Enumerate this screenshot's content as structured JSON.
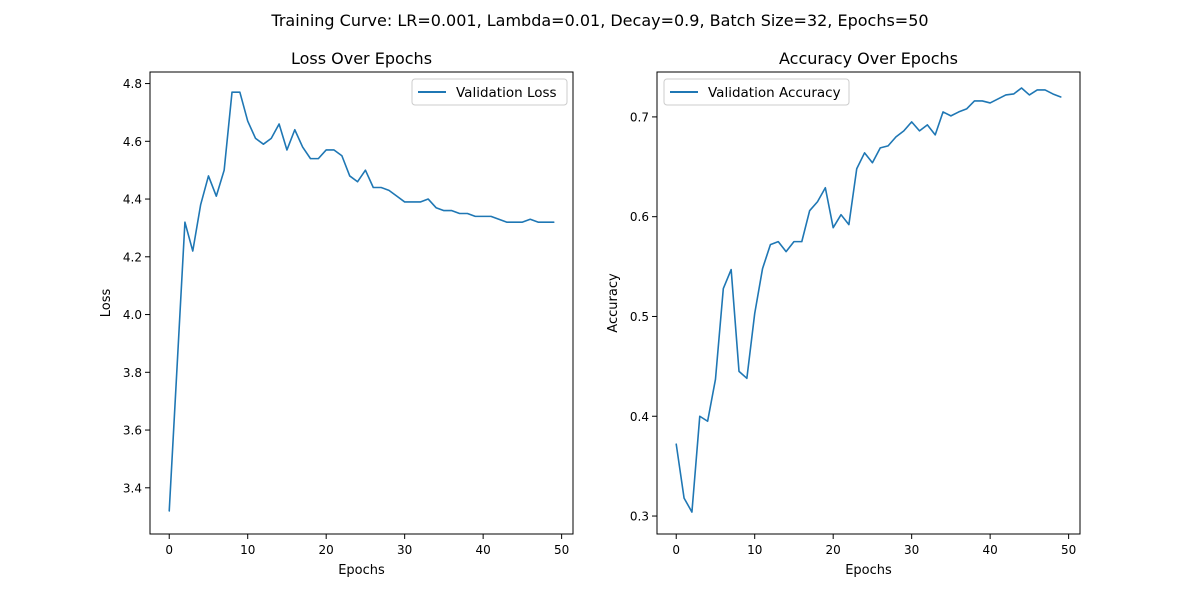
{
  "figure": {
    "suptitle": "Training Curve: LR=0.001, Lambda=0.01, Decay=0.9, Batch Size=32, Epochs=50"
  },
  "chart_data": [
    {
      "type": "line",
      "title": "Loss Over Epochs",
      "xlabel": "Epochs",
      "ylabel": "Loss",
      "xlim": [
        -2.45,
        51.45
      ],
      "ylim": [
        3.24,
        4.84
      ],
      "xticks": [
        0,
        10,
        20,
        30,
        40,
        50
      ],
      "yticks": [
        3.4,
        3.6,
        3.8,
        4.0,
        4.2,
        4.4,
        4.6,
        4.8
      ],
      "xtick_labels": [
        "0",
        "10",
        "20",
        "30",
        "40",
        "50"
      ],
      "ytick_labels": [
        "3.4",
        "3.6",
        "3.8",
        "4.0",
        "4.2",
        "4.4",
        "4.6",
        "4.8"
      ],
      "grid": false,
      "legend_position": "upper right",
      "color": "#1f77b4",
      "series": [
        {
          "name": "Validation Loss",
          "x": [
            0,
            1,
            2,
            3,
            4,
            5,
            6,
            7,
            8,
            9,
            10,
            11,
            12,
            13,
            14,
            15,
            16,
            17,
            18,
            19,
            20,
            21,
            22,
            23,
            24,
            25,
            26,
            27,
            28,
            29,
            30,
            31,
            32,
            33,
            34,
            35,
            36,
            37,
            38,
            39,
            40,
            41,
            42,
            43,
            44,
            45,
            46,
            47,
            48,
            49
          ],
          "values": [
            3.32,
            3.82,
            4.32,
            4.22,
            4.38,
            4.48,
            4.41,
            4.5,
            4.77,
            4.77,
            4.67,
            4.61,
            4.59,
            4.61,
            4.66,
            4.57,
            4.64,
            4.58,
            4.54,
            4.54,
            4.57,
            4.57,
            4.55,
            4.48,
            4.46,
            4.5,
            4.44,
            4.44,
            4.43,
            4.41,
            4.39,
            4.39,
            4.39,
            4.4,
            4.37,
            4.36,
            4.36,
            4.35,
            4.35,
            4.34,
            4.34,
            4.34,
            4.33,
            4.32,
            4.32,
            4.32,
            4.33,
            4.32,
            4.32,
            4.32
          ]
        }
      ]
    },
    {
      "type": "line",
      "title": "Accuracy Over Epochs",
      "xlabel": "Epochs",
      "ylabel": "Accuracy",
      "xlim": [
        -2.45,
        51.45
      ],
      "ylim": [
        0.282,
        0.745
      ],
      "xticks": [
        0,
        10,
        20,
        30,
        40,
        50
      ],
      "yticks": [
        0.3,
        0.4,
        0.5,
        0.6,
        0.7
      ],
      "xtick_labels": [
        "0",
        "10",
        "20",
        "30",
        "40",
        "50"
      ],
      "ytick_labels": [
        "0.3",
        "0.4",
        "0.5",
        "0.6",
        "0.7"
      ],
      "grid": false,
      "legend_position": "upper left",
      "color": "#1f77b4",
      "series": [
        {
          "name": "Validation Accuracy",
          "x": [
            0,
            1,
            2,
            3,
            4,
            5,
            6,
            7,
            8,
            9,
            10,
            11,
            12,
            13,
            14,
            15,
            16,
            17,
            18,
            19,
            20,
            21,
            22,
            23,
            24,
            25,
            26,
            27,
            28,
            29,
            30,
            31,
            32,
            33,
            34,
            35,
            36,
            37,
            38,
            39,
            40,
            41,
            42,
            43,
            44,
            45,
            46,
            47,
            48,
            49
          ],
          "values": [
            0.372,
            0.318,
            0.304,
            0.4,
            0.395,
            0.437,
            0.528,
            0.547,
            0.445,
            0.438,
            0.503,
            0.548,
            0.572,
            0.575,
            0.565,
            0.575,
            0.575,
            0.606,
            0.615,
            0.629,
            0.589,
            0.602,
            0.592,
            0.648,
            0.664,
            0.654,
            0.669,
            0.671,
            0.68,
            0.686,
            0.695,
            0.686,
            0.692,
            0.682,
            0.705,
            0.701,
            0.705,
            0.708,
            0.716,
            0.716,
            0.714,
            0.718,
            0.722,
            0.723,
            0.729,
            0.722,
            0.727,
            0.727,
            0.723,
            0.72
          ]
        }
      ]
    }
  ]
}
